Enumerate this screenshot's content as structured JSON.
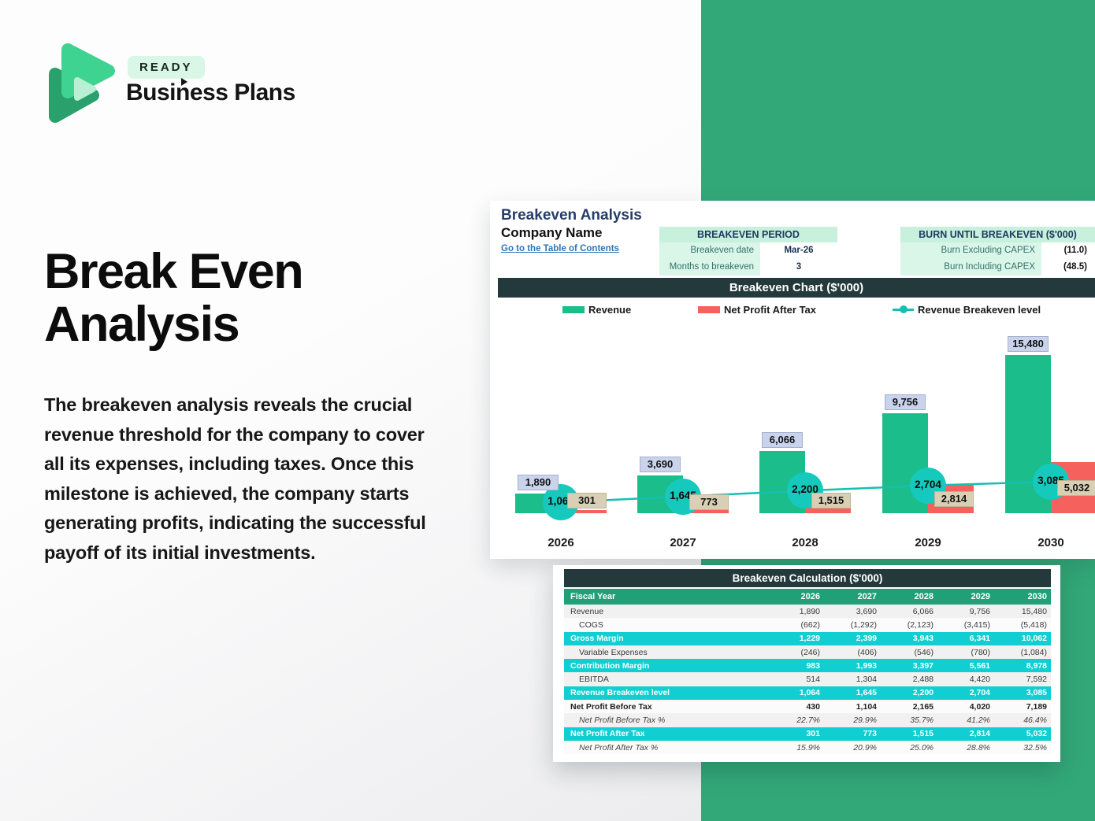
{
  "logo": {
    "badge": "READY",
    "brand": "Business Plans"
  },
  "hero": {
    "title": "Break Even Analysis",
    "body": "The breakeven analysis reveals the crucial revenue threshold for the company to cover all its expenses, including taxes. Once this milestone is achieved, the company starts generating profits, indicating the successful payoff of its initial investments."
  },
  "sheet": {
    "title": "Breakeven Analysis",
    "company": "Company Name",
    "link": "Go to the Table of Contents",
    "period_table": {
      "header": "BREAKEVEN PERIOD",
      "rows": [
        {
          "label": "Breakeven date",
          "value": "Mar-26"
        },
        {
          "label": "Months to breakeven",
          "value": "3"
        }
      ]
    },
    "burn_table": {
      "header": "BURN UNTIL BREAKEVEN ($'000)",
      "rows": [
        {
          "label": "Burn Excluding CAPEX",
          "value": "(11.0)"
        },
        {
          "label": "Burn Including CAPEX",
          "value": "(48.5)"
        }
      ]
    }
  },
  "chart_data": {
    "type": "bar",
    "title": "Breakeven Chart ($'000)",
    "categories": [
      "2026",
      "2027",
      "2028",
      "2029",
      "2030"
    ],
    "series": [
      {
        "name": "Revenue",
        "type": "bar",
        "color": "#1bbd8b",
        "values": [
          1890,
          3690,
          6066,
          9756,
          15480
        ]
      },
      {
        "name": "Net Profit After Tax",
        "type": "bar",
        "color": "#f5625d",
        "values": [
          301,
          773,
          1515,
          2814,
          5032
        ]
      },
      {
        "name": "Revenue Breakeven level",
        "type": "line",
        "color": "#15c0b2",
        "values": [
          1064,
          1645,
          2200,
          2704,
          3085
        ]
      }
    ],
    "ylim": [
      0,
      16000
    ],
    "grid": false,
    "legend_position": "top",
    "data_labels": true
  },
  "calc_table": {
    "title": "Breakeven Calculation ($'000)",
    "year_header_label": "Fiscal Year",
    "years": [
      "2026",
      "2027",
      "2028",
      "2029",
      "2030"
    ],
    "rows": [
      {
        "label": "Revenue",
        "style": "normal",
        "values": [
          "1,890",
          "3,690",
          "6,066",
          "9,756",
          "15,480"
        ]
      },
      {
        "label": "COGS",
        "style": "indent",
        "values": [
          "(662)",
          "(1,292)",
          "(2,123)",
          "(3,415)",
          "(5,418)"
        ]
      },
      {
        "label": "Gross Margin",
        "style": "highlight",
        "values": [
          "1,229",
          "2,399",
          "3,943",
          "6,341",
          "10,062"
        ]
      },
      {
        "label": "Variable Expenses",
        "style": "indent",
        "values": [
          "(246)",
          "(406)",
          "(546)",
          "(780)",
          "(1,084)"
        ]
      },
      {
        "label": "Contribution Margin",
        "style": "highlight",
        "values": [
          "983",
          "1,993",
          "3,397",
          "5,561",
          "8,978"
        ]
      },
      {
        "label": "EBITDA",
        "style": "indent",
        "values": [
          "514",
          "1,304",
          "2,488",
          "4,420",
          "7,592"
        ]
      },
      {
        "label": "Revenue Breakeven level",
        "style": "highlight",
        "values": [
          "1,064",
          "1,645",
          "2,200",
          "2,704",
          "3,085"
        ]
      },
      {
        "label": "Net Profit Before Tax",
        "style": "boldrow",
        "values": [
          "430",
          "1,104",
          "2,165",
          "4,020",
          "7,189"
        ]
      },
      {
        "label": "Net Profit Before Tax %",
        "style": "ital",
        "values": [
          "22.7%",
          "29.9%",
          "35.7%",
          "41.2%",
          "46.4%"
        ]
      },
      {
        "label": "Net Profit After Tax",
        "style": "highlight",
        "values": [
          "301",
          "773",
          "1,515",
          "2,814",
          "5,032"
        ]
      },
      {
        "label": "Net Profit After Tax %",
        "style": "ital",
        "values": [
          "15.9%",
          "20.9%",
          "25.0%",
          "28.8%",
          "32.5%"
        ]
      }
    ]
  },
  "colors": {
    "brand_green_block": "#32a878",
    "bar_green": "#1bbd8b",
    "bar_red": "#f5625d",
    "breakeven_teal": "#15c9bc",
    "highlight_cyan": "#10ced2",
    "table_header_green": "#1fa077",
    "dark_titlebar": "#24393b",
    "revenue_label_bg": "#c9d3ec",
    "netprofit_label_bg": "#d8cfb4",
    "link_blue": "#2e75b6",
    "sheet_title_navy": "#253d6a"
  }
}
